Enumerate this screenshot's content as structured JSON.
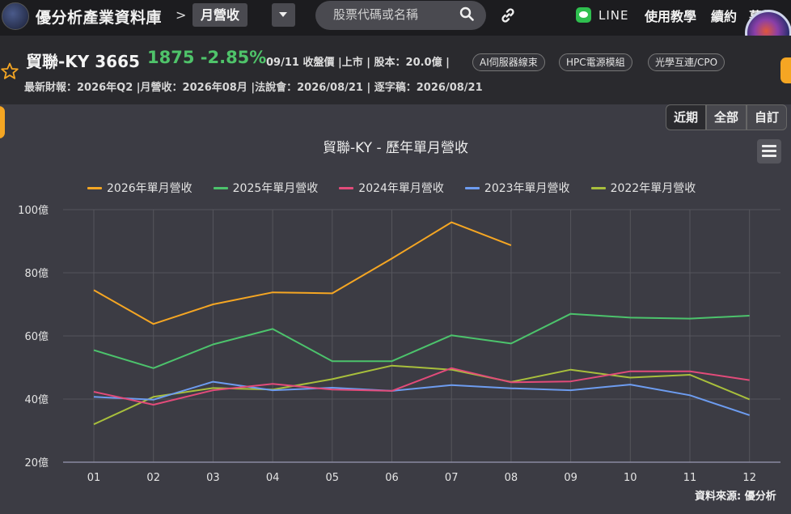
{
  "topbar": {
    "brand": "優分析產業資料庫",
    "crumb_sep": ">",
    "crumb_current": "月營收",
    "search_placeholder": "股票代碼或名稱",
    "line_label": "LINE",
    "nav": [
      "使用教學",
      "續約",
      "幕後"
    ]
  },
  "stock": {
    "name": "貿聯-KY 3665",
    "price_change": "1875 -2.85%",
    "meta": "09/11 收盤價 |上市 | 股本：20.0億 |",
    "tags": [
      "AI伺服器線束",
      "HPC電源模組",
      "光學互連/CPO"
    ],
    "line2": "最新財報：2026年Q2 |月營收：2026年08月 |法說會：2026/08/21 | 逐字稿：2026/08/21"
  },
  "periods": [
    "近期",
    "全部",
    "自訂"
  ],
  "colors": {
    "y2026": "#f5a623",
    "y2025": "#4cc36c",
    "y2024": "#e24b7a",
    "y2023": "#6d9cf0",
    "y2022": "#a8bf3c"
  },
  "source": "資料來源: 優分析",
  "chart_data": {
    "type": "line",
    "title": "貿聯-KY - 歷年單月營收",
    "categories": [
      "01",
      "02",
      "03",
      "04",
      "05",
      "06",
      "07",
      "08",
      "09",
      "10",
      "11",
      "12"
    ],
    "y_tick_labels": [
      "20億",
      "40億",
      "60億",
      "80億",
      "100億"
    ],
    "y_ticks": [
      20,
      40,
      60,
      80,
      100
    ],
    "ylim": [
      20,
      100
    ],
    "grid": true,
    "legend_position": "top",
    "series": [
      {
        "name": "2026年單月營收",
        "color_key": "y2026",
        "values": [
          74.5,
          63.8,
          70.0,
          73.8,
          73.5,
          84.5,
          96.0,
          88.7,
          null,
          null,
          null,
          null
        ]
      },
      {
        "name": "2025年單月營收",
        "color_key": "y2025",
        "values": [
          55.5,
          49.8,
          57.3,
          62.2,
          52.0,
          52.0,
          60.2,
          57.6,
          67.0,
          65.8,
          65.5,
          66.4
        ]
      },
      {
        "name": "2024年單月營收",
        "color_key": "y2024",
        "values": [
          42.3,
          38.2,
          42.8,
          44.8,
          43.0,
          42.6,
          49.8,
          45.3,
          45.6,
          48.8,
          48.8,
          46.0
        ]
      },
      {
        "name": "2023年單月營收",
        "color_key": "y2023",
        "values": [
          40.7,
          39.8,
          45.5,
          42.8,
          43.6,
          42.6,
          44.4,
          43.4,
          42.8,
          44.6,
          41.2,
          34.9
        ]
      },
      {
        "name": "2022年單月營收",
        "color_key": "y2022",
        "values": [
          32.0,
          40.7,
          43.5,
          43.0,
          46.3,
          50.6,
          49.3,
          45.4,
          49.3,
          46.8,
          47.7,
          39.9
        ]
      }
    ]
  }
}
